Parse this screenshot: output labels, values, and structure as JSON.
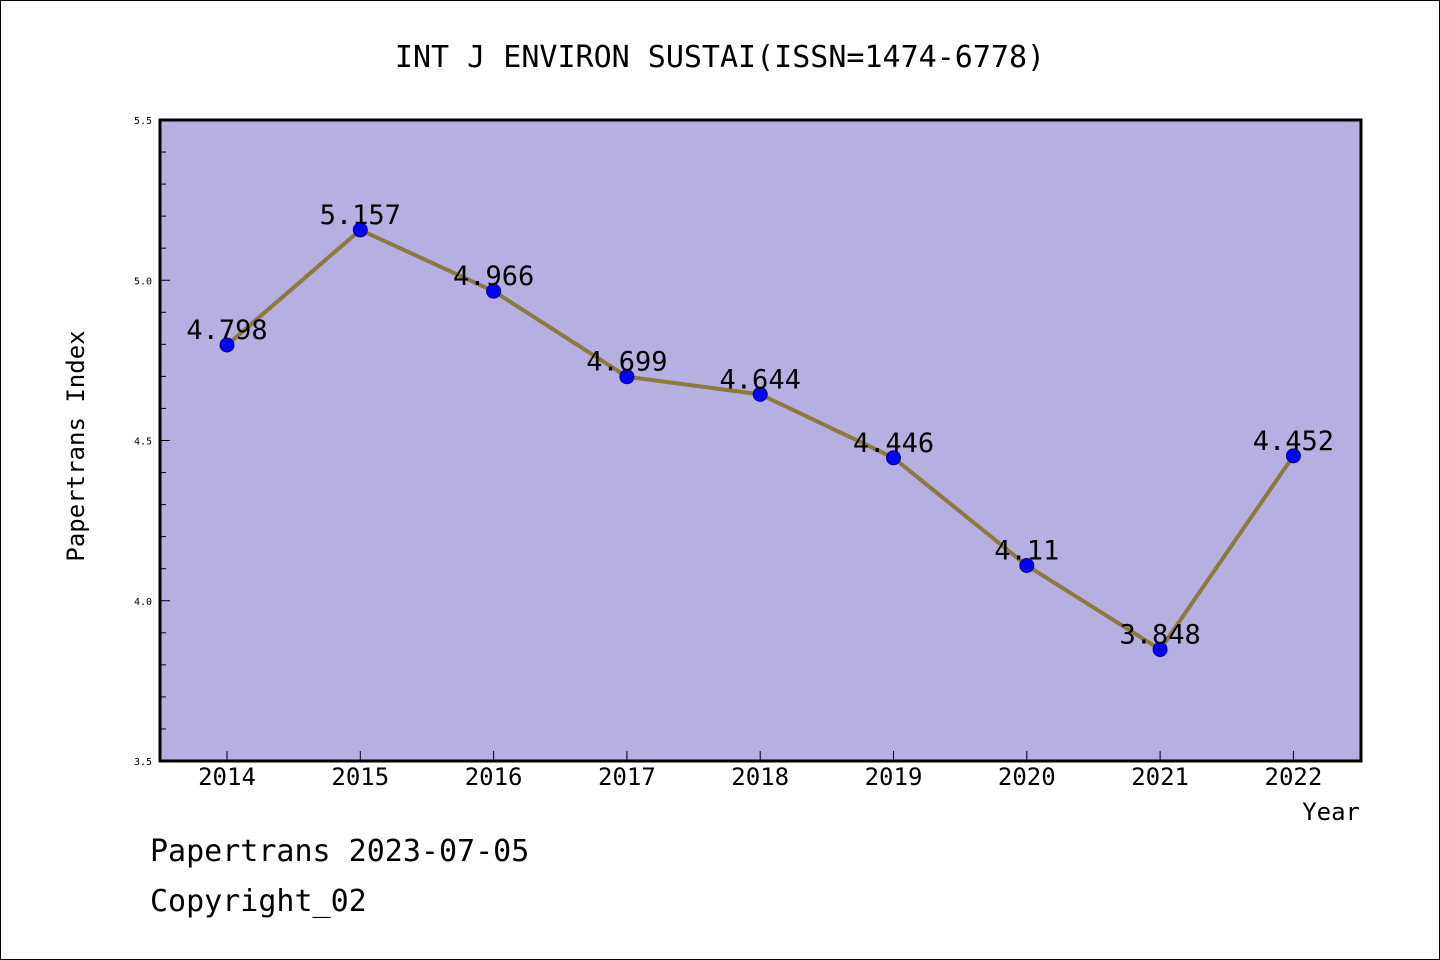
{
  "chart_data": {
    "type": "line",
    "title": "INT J ENVIRON SUSTAI(ISSN=1474-6778)",
    "xlabel": "Year",
    "ylabel": "Papertrans Index",
    "categories": [
      "2014",
      "2015",
      "2016",
      "2017",
      "2018",
      "2019",
      "2020",
      "2021",
      "2022"
    ],
    "values": [
      4.798,
      5.157,
      4.966,
      4.699,
      4.644,
      4.446,
      4.11,
      3.848,
      4.452
    ],
    "data_labels": [
      "4.798",
      "5.157",
      "4.966",
      "4.699",
      "4.644",
      "4.446",
      "4.11",
      "3.848",
      "4.452"
    ],
    "ylim": [
      3.5,
      5.5
    ],
    "yticks": [
      "3.5",
      "4.0",
      "4.5",
      "5.0",
      "5.5"
    ],
    "grid": false,
    "legend": "none",
    "colors": {
      "plot_background": "#b5afe2",
      "line": "#8b7a3a",
      "marker": "#0000ff",
      "marker_edge": "#00008b"
    }
  },
  "footer": {
    "line1": "Papertrans 2023-07-05",
    "line2": "Copyright_02"
  }
}
